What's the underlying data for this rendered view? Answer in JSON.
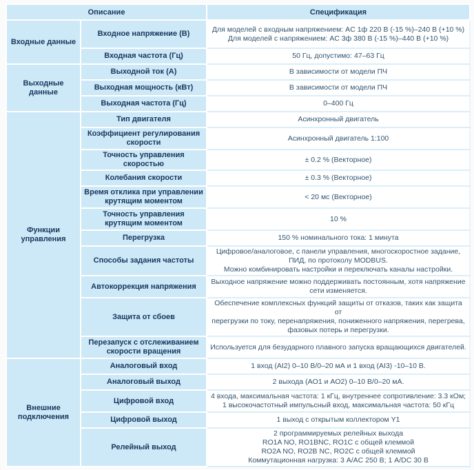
{
  "colors": {
    "cell_blue": "#cde8f6",
    "top_border_navy": "#254a72",
    "label_text_navy": "#17365d",
    "spec_text": "#31536f",
    "separator_blue": "#d9eefa",
    "page_bg": "#fbfbfb"
  },
  "table": {
    "header": {
      "description": "Описание",
      "specification": "Спецификация"
    },
    "groups": [
      {
        "name": "Входные данные",
        "rows": [
          {
            "label": "Входное напряжение (В)",
            "spec": "Для моделей с входным напряжением: AC 1ф 220 В (-15 %)–240 В (+10 %)\nДля моделей с напряжением: AC 3ф 380 В (-15 %)–440 В (+10 %)"
          },
          {
            "label": "Входная частота (Гц)",
            "spec": "50 Гц, допустимо: 47–63 Гц"
          }
        ]
      },
      {
        "name": "Выходные данные",
        "rows": [
          {
            "label": "Выходной ток (А)",
            "spec": "В зависимости от модели ПЧ"
          },
          {
            "label": "Выходная мощность (кВт)",
            "spec": "В зависимости от модели ПЧ"
          },
          {
            "label": "Выходная частота (Гц)",
            "spec": "0–400 Гц"
          }
        ]
      },
      {
        "name": "Функции управления",
        "rows": [
          {
            "label": "Тип двигателя",
            "spec": "Асинхронный двигатель"
          },
          {
            "label": "Коэффициент регулирования скорости",
            "spec": "Асинхронный двигатель 1:100"
          },
          {
            "label": "Точность управления скоростью",
            "spec": "± 0.2 % (Векторное)"
          },
          {
            "label": "Колебания скорости",
            "spec": "± 0.3 % (Векторное)"
          },
          {
            "label": "Время отклика при управлении крутящим моментом",
            "spec": "< 20 мс (Векторное)"
          },
          {
            "label": "Точность управления крутящим моментом",
            "spec": "10 %"
          },
          {
            "label": "Перегрузка",
            "spec": "150 % номинального тока: 1 минута"
          },
          {
            "label": "Способы задания частоты",
            "spec": "Цифровое/аналоговое, с панели управления, многоскоростное задание,\nПИД, по протоколу MODBUS.\nМожно комбинировать настройки и переключать каналы настройки."
          },
          {
            "label": "Автокоррекция напряжения",
            "spec": "Выходное напряжение можно поддерживать постоянным, хотя напряжение\nсети изменяется."
          },
          {
            "label": "Защита от сбоев",
            "spec": "Обеспечение комплексных функций защиты от отказов, таких как защита от\nперегрузки по току, перенапряжения, пониженного напряжения, перегрева,\nфазовых потерь и перегрузки."
          },
          {
            "label": "Перезапуск с отслеживанием скорости вращения",
            "spec": "Используется для безударного плавного запуска вращающихся двигателей."
          }
        ]
      },
      {
        "name": "Внешние подключения",
        "rows": [
          {
            "label": "Аналоговый вход",
            "spec": "1 вход (AI2) 0–10 В/0–20 мА и 1 вход (AI3) -10–10 В."
          },
          {
            "label": "Аналоговый выход",
            "spec": "2 выхода (AO1 и AO2) 0–10 В/0–20 мА."
          },
          {
            "label": "Цифровой вход",
            "spec": "4 входа, максимальная частота: 1 кГц, внутреннее сопротивление: 3.3 кОм;\n1 высокочастотный импульсный вход, максимальная частота: 50 кГц"
          },
          {
            "label": "Цифровой выход",
            "spec": "1 выход с открытым коллектором Y1"
          },
          {
            "label": "Релейный выход",
            "spec": "2 программируемых релейных выхода\nRO1A NO, RO1BNC, RO1C с общей клеммой\nRO2A NO, RO2B NC, RO2C с общей клеммой\nКоммутационная нагрузка: 3 А/AC 250 В; 1 А/DC 30 В"
          }
        ]
      }
    ]
  }
}
